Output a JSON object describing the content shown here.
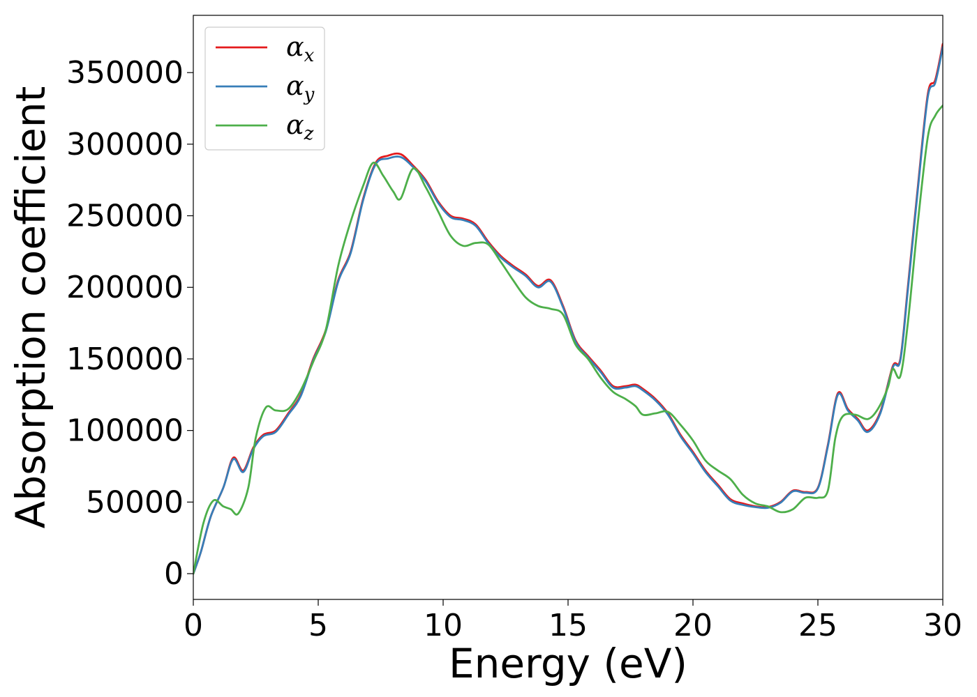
{
  "chart_data": {
    "type": "line",
    "xlabel": "Energy (eV)",
    "ylabel": "Absorption coefficient",
    "xlim": [
      0,
      30
    ],
    "ylim": [
      -18000,
      390000
    ],
    "xticks": [
      0,
      5,
      10,
      15,
      20,
      25,
      30
    ],
    "yticks": [
      0,
      50000,
      100000,
      150000,
      200000,
      250000,
      300000,
      350000
    ],
    "grid": false,
    "legend_position": "top-left",
    "series": [
      {
        "name": "α_x",
        "base": "α",
        "sub": "x",
        "color": "#e41a1c",
        "x": [
          0,
          0.3,
          0.7,
          1.2,
          1.6,
          2.0,
          2.4,
          2.8,
          3.3,
          3.8,
          4.3,
          4.8,
          5.3,
          5.8,
          6.3,
          6.8,
          7.3,
          7.8,
          8.3,
          8.8,
          9.3,
          9.8,
          10.3,
          10.8,
          11.3,
          11.8,
          12.3,
          12.8,
          13.3,
          13.8,
          14.3,
          14.8,
          15.3,
          15.8,
          16.3,
          16.8,
          17.3,
          17.7,
          18.0,
          18.5,
          19.0,
          19.5,
          20.0,
          20.5,
          21.0,
          21.5,
          22.0,
          22.5,
          23.0,
          23.5,
          24.0,
          24.5,
          25.0,
          25.4,
          25.8,
          26.2,
          26.6,
          27.0,
          27.5,
          28.0,
          28.3,
          28.6,
          29.0,
          29.4,
          29.7,
          30.0
        ],
        "values": [
          0,
          15000,
          40000,
          60000,
          81000,
          72000,
          88000,
          97000,
          100000,
          112000,
          125000,
          150000,
          170000,
          205000,
          225000,
          262000,
          287000,
          292000,
          293000,
          285000,
          275000,
          260000,
          250000,
          248000,
          244000,
          232000,
          222000,
          215000,
          209000,
          201000,
          205000,
          187000,
          163000,
          152000,
          142000,
          131000,
          131000,
          132000,
          129000,
          122000,
          112000,
          97000,
          85000,
          72000,
          62000,
          52000,
          49000,
          47000,
          46500,
          50000,
          58000,
          57000,
          60000,
          90000,
          126000,
          115000,
          108000,
          100000,
          113000,
          145000,
          150000,
          200000,
          270000,
          335000,
          345000,
          370000
        ]
      },
      {
        "name": "α_y",
        "base": "α",
        "sub": "y",
        "color": "#377eb8",
        "x": [
          0,
          0.3,
          0.7,
          1.2,
          1.6,
          2.0,
          2.4,
          2.8,
          3.3,
          3.8,
          4.3,
          4.8,
          5.3,
          5.8,
          6.3,
          6.8,
          7.3,
          7.8,
          8.3,
          8.8,
          9.3,
          9.8,
          10.3,
          10.8,
          11.3,
          11.8,
          12.3,
          12.8,
          13.3,
          13.8,
          14.3,
          14.8,
          15.3,
          15.8,
          16.3,
          16.8,
          17.3,
          17.7,
          18.0,
          18.5,
          19.0,
          19.5,
          20.0,
          20.5,
          21.0,
          21.5,
          22.0,
          22.5,
          23.0,
          23.5,
          24.0,
          24.5,
          25.0,
          25.4,
          25.8,
          26.2,
          26.6,
          27.0,
          27.5,
          28.0,
          28.3,
          28.6,
          29.0,
          29.4,
          29.7,
          30.0
        ],
        "values": [
          0,
          15000,
          40000,
          60000,
          80000,
          71000,
          87000,
          96000,
          99000,
          111000,
          124000,
          149000,
          169000,
          204000,
          224000,
          261000,
          286000,
          290000,
          291000,
          284000,
          274000,
          259000,
          249000,
          247000,
          243000,
          231000,
          221000,
          214000,
          208000,
          200000,
          204000,
          186000,
          162000,
          151000,
          141000,
          130000,
          130000,
          131000,
          128000,
          121000,
          111000,
          96000,
          84000,
          71000,
          61000,
          51000,
          48000,
          46500,
          46000,
          49500,
          57500,
          56500,
          59500,
          89000,
          125000,
          114000,
          107000,
          99000,
          112000,
          144000,
          149000,
          198000,
          268000,
          333000,
          343000,
          368000
        ]
      },
      {
        "name": "α_z",
        "base": "α",
        "sub": "z",
        "color": "#4daf4a",
        "x": [
          0,
          0.4,
          0.8,
          1.2,
          1.5,
          1.8,
          2.2,
          2.5,
          2.9,
          3.3,
          3.8,
          4.3,
          4.8,
          5.3,
          5.8,
          6.3,
          6.8,
          7.2,
          7.6,
          8.0,
          8.3,
          8.8,
          9.3,
          9.8,
          10.3,
          10.8,
          11.3,
          11.8,
          12.3,
          12.8,
          13.3,
          13.8,
          14.3,
          14.8,
          15.3,
          15.8,
          16.3,
          16.8,
          17.3,
          17.7,
          18.0,
          18.5,
          19.0,
          19.5,
          20.0,
          20.5,
          21.0,
          21.5,
          22.0,
          22.5,
          23.0,
          23.5,
          24.0,
          24.5,
          25.0,
          25.4,
          25.7,
          26.0,
          26.5,
          27.0,
          27.4,
          27.8,
          28.0,
          28.3,
          28.6,
          29.0,
          29.4,
          29.7,
          30.0
        ],
        "values": [
          0,
          35000,
          51000,
          47000,
          45000,
          42000,
          60000,
          95000,
          116000,
          114000,
          115000,
          128000,
          148000,
          170000,
          215000,
          246000,
          271000,
          287000,
          278000,
          267000,
          262000,
          283000,
          270000,
          253000,
          236000,
          229000,
          231000,
          230000,
          218000,
          205000,
          193000,
          187000,
          185000,
          181000,
          160000,
          150000,
          137000,
          127000,
          122000,
          117000,
          111000,
          112000,
          113000,
          104000,
          93000,
          79000,
          72000,
          66000,
          55000,
          49000,
          47000,
          43000,
          45000,
          53000,
          53000,
          58000,
          95000,
          110000,
          111000,
          108000,
          115000,
          130000,
          143000,
          138000,
          175000,
          245000,
          305000,
          320000,
          327000
        ]
      }
    ]
  }
}
